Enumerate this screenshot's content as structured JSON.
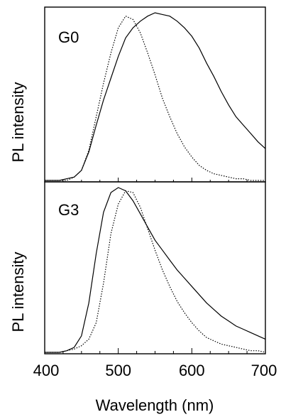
{
  "chart_data": [
    {
      "type": "line",
      "panel_label": "G0",
      "xlabel": "",
      "ylabel": "PL intensity",
      "xlim": [
        400,
        700
      ],
      "ylim": [
        0,
        1.0
      ],
      "grid": false,
      "series": [
        {
          "style": "solid",
          "color": "#000000",
          "x": [
            400,
            420,
            430,
            440,
            450,
            460,
            470,
            480,
            490,
            500,
            510,
            520,
            530,
            540,
            550,
            560,
            570,
            580,
            590,
            600,
            610,
            620,
            630,
            640,
            650,
            660,
            670,
            680,
            690,
            700
          ],
          "y": [
            0.0,
            0.0,
            0.01,
            0.02,
            0.06,
            0.17,
            0.33,
            0.48,
            0.61,
            0.74,
            0.85,
            0.91,
            0.95,
            0.98,
            1.0,
            0.99,
            0.98,
            0.95,
            0.91,
            0.86,
            0.79,
            0.7,
            0.62,
            0.53,
            0.45,
            0.38,
            0.33,
            0.28,
            0.23,
            0.19
          ]
        },
        {
          "style": "dotted",
          "color": "#000000",
          "x": [
            400,
            420,
            430,
            440,
            450,
            460,
            470,
            480,
            490,
            500,
            510,
            520,
            530,
            540,
            550,
            560,
            570,
            580,
            590,
            600,
            610,
            620,
            630,
            640,
            650,
            660,
            670,
            680,
            690,
            700
          ],
          "y": [
            0.0,
            0.0,
            0.0,
            0.02,
            0.06,
            0.18,
            0.38,
            0.58,
            0.76,
            0.91,
            0.98,
            0.96,
            0.88,
            0.76,
            0.63,
            0.49,
            0.38,
            0.28,
            0.2,
            0.14,
            0.09,
            0.06,
            0.04,
            0.03,
            0.02,
            0.01,
            0.01,
            0.0,
            0.0,
            0.0
          ]
        }
      ]
    },
    {
      "type": "line",
      "panel_label": "G3",
      "xlabel": "Wavelength (nm)",
      "ylabel": "PL intensity",
      "xlim": [
        400,
        700
      ],
      "ylim": [
        0,
        1.0
      ],
      "xticks": [
        "400",
        "500",
        "600",
        "700"
      ],
      "grid": false,
      "series": [
        {
          "style": "solid",
          "color": "#000000",
          "x": [
            400,
            420,
            430,
            440,
            450,
            460,
            470,
            480,
            490,
            500,
            510,
            520,
            530,
            540,
            550,
            560,
            570,
            580,
            590,
            600,
            610,
            620,
            630,
            640,
            650,
            660,
            670,
            680,
            690,
            700
          ],
          "y": [
            0.0,
            0.0,
            0.01,
            0.03,
            0.1,
            0.3,
            0.6,
            0.85,
            0.97,
            1.0,
            0.98,
            0.92,
            0.84,
            0.76,
            0.68,
            0.62,
            0.56,
            0.5,
            0.45,
            0.4,
            0.35,
            0.3,
            0.26,
            0.22,
            0.19,
            0.16,
            0.14,
            0.12,
            0.1,
            0.08
          ]
        },
        {
          "style": "dotted",
          "color": "#000000",
          "x": [
            400,
            420,
            430,
            440,
            450,
            460,
            470,
            480,
            490,
            500,
            510,
            520,
            530,
            540,
            550,
            560,
            570,
            580,
            590,
            600,
            610,
            620,
            630,
            640,
            650,
            660,
            670,
            680,
            690,
            700
          ],
          "y": [
            0.0,
            0.0,
            0.01,
            0.02,
            0.04,
            0.08,
            0.18,
            0.42,
            0.72,
            0.9,
            0.98,
            0.97,
            0.88,
            0.75,
            0.62,
            0.5,
            0.4,
            0.31,
            0.24,
            0.18,
            0.13,
            0.09,
            0.07,
            0.05,
            0.04,
            0.03,
            0.02,
            0.01,
            0.01,
            0.0
          ]
        }
      ]
    }
  ]
}
